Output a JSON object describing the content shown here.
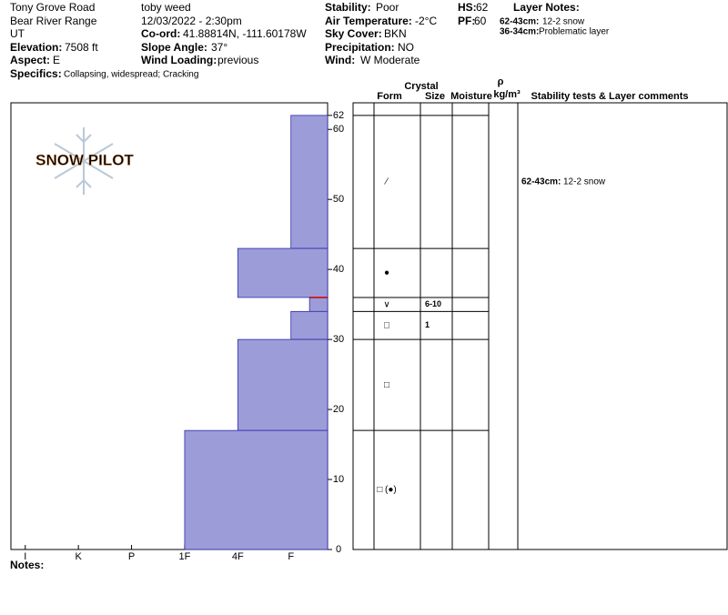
{
  "header": {
    "location": "Tony Grove Road",
    "range": "Bear River Range",
    "state": "UT",
    "elevation": {
      "label": "Elevation:",
      "value": "7508 ft"
    },
    "aspect": {
      "label": "Aspect:",
      "value": "E"
    },
    "specifics": {
      "label": "Specifics:",
      "value": "Collapsing, widespread; Cracking"
    },
    "observer": "toby weed",
    "date": "12/03/2022 - 2:30pm",
    "coord": {
      "label": "Co-ord:",
      "value": "41.88814N, -111.60178W"
    },
    "slope": {
      "label": "Slope Angle:",
      "value": "37°"
    },
    "wind_loading": {
      "label": "Wind Loading:",
      "value": "previous"
    },
    "stability": {
      "label": "Stability:",
      "value": "Poor"
    },
    "air_temp": {
      "label": "Air Temperature:",
      "value": "-2°C"
    },
    "sky": {
      "label": "Sky Cover:",
      "value": "BKN"
    },
    "precip": {
      "label": "Precipitation:",
      "value": "NO"
    },
    "wind": {
      "label": "Wind:",
      "value": "W Moderate"
    },
    "hs": {
      "label": "HS:",
      "value": "62"
    },
    "pf": {
      "label": "PF:",
      "value": "60"
    },
    "layer_notes": {
      "title": "Layer Notes:",
      "items": [
        {
          "depth": "62-43cm:",
          "text": "12-2 snow"
        },
        {
          "depth": "36-34cm:",
          "text": "Problematic layer"
        }
      ]
    }
  },
  "logo": "SNOW PILOT",
  "notes_label": "Notes:",
  "table_headers": {
    "crystal": "Crystal",
    "form": "Form",
    "size": "Size",
    "moisture": "Moisture",
    "rho": "ρ",
    "density_unit": "kg/m³",
    "comments": "Stability tests & Layer comments"
  },
  "chart_data": {
    "type": "snow-profile",
    "xlim": [
      6.27,
      0.31
    ],
    "xticks": [
      {
        "value": 6,
        "label": "I"
      },
      {
        "value": 5,
        "label": "K"
      },
      {
        "value": 4,
        "label": "P"
      },
      {
        "value": 3,
        "label": "1F"
      },
      {
        "value": 2,
        "label": "4F"
      },
      {
        "value": 1,
        "label": "F"
      }
    ],
    "ylim": [
      0,
      63.8
    ],
    "yticks": [
      0,
      10,
      20,
      30,
      40,
      50,
      60,
      62
    ],
    "color": "#9c9cd8",
    "layers": [
      {
        "top": 62,
        "bottom": 43,
        "hardness": 1,
        "form": "⁄",
        "size": null,
        "comment": {
          "depth": "62-43cm:",
          "text": "12-2 snow"
        }
      },
      {
        "top": 43,
        "bottom": 36,
        "hardness": 2,
        "form": "●",
        "size": null
      },
      {
        "top": 36,
        "bottom": 34,
        "hardness": 0.65,
        "form": "∨",
        "size": "6-10"
      },
      {
        "top": 34,
        "bottom": 30,
        "hardness": 1,
        "form": "□",
        "size": "1"
      },
      {
        "top": 30,
        "bottom": 17,
        "hardness": 2,
        "form": "□",
        "size": null
      },
      {
        "top": 17,
        "bottom": 0,
        "hardness": 3,
        "form": "□ (●)",
        "size": null
      }
    ]
  }
}
